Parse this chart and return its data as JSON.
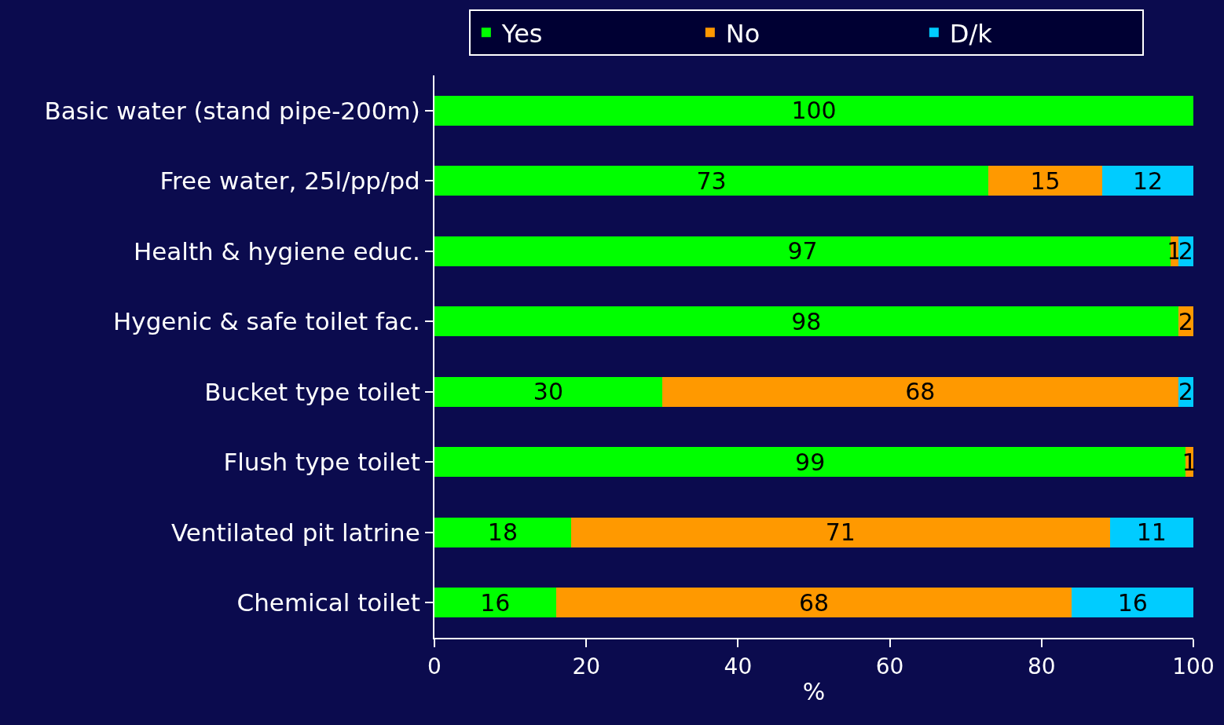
{
  "chart_data": {
    "type": "bar",
    "orientation": "horizontal",
    "stacked": true,
    "xlabel": "%",
    "categories": [
      "Basic water (stand pipe-200m)",
      "Free water, 25l/pp/pd",
      "Health & hygiene educ.",
      "Hygenic & safe toilet fac.",
      "Bucket type toilet",
      "Flush type toilet",
      "Ventilated pit latrine",
      "Chemical toilet"
    ],
    "series": [
      {
        "name": "Yes",
        "color": "#00ff00",
        "values": [
          100,
          73,
          97,
          98,
          30,
          99,
          18,
          16
        ],
        "value_labels": [
          "100",
          "73",
          "97",
          "98",
          "30",
          "99",
          "18",
          "16"
        ]
      },
      {
        "name": "No",
        "color": "#ff9900",
        "values": [
          0,
          15,
          1,
          2,
          68,
          1,
          71,
          68
        ],
        "value_labels": [
          null,
          "15",
          "1",
          "2",
          "68",
          "1",
          "71",
          "68"
        ]
      },
      {
        "name": "D/k",
        "color": "#00ccff",
        "values": [
          0,
          12,
          2,
          0,
          2,
          0,
          11,
          16
        ],
        "value_labels": [
          null,
          "12",
          "2",
          null,
          "2",
          null,
          "11",
          "16"
        ]
      }
    ],
    "xlim": [
      0,
      100
    ],
    "xticks": [
      0,
      20,
      40,
      60,
      80,
      100
    ],
    "grid": false,
    "legend": "top"
  }
}
